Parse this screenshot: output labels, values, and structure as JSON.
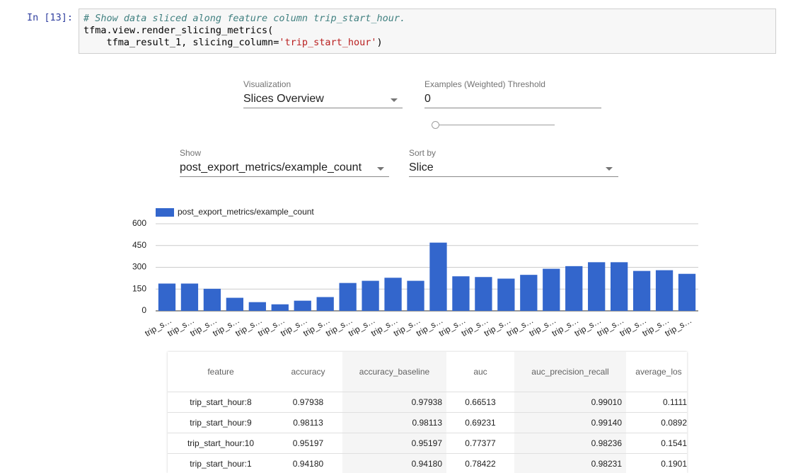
{
  "cell": {
    "prompt": "In [13]:",
    "code": [
      {
        "comment": "# Show data sliced along feature column trip_start_hour."
      },
      {
        "text": "tfma.view.render_slicing_metrics("
      },
      {
        "text": "    tfma_result_1, slicing_column=",
        "string": "'trip_start_hour'",
        "end": ")"
      }
    ]
  },
  "controls": {
    "visualization": {
      "label": "Visualization",
      "value": "Slices Overview"
    },
    "threshold": {
      "label": "Examples (Weighted) Threshold",
      "value": "0"
    },
    "show": {
      "label": "Show",
      "value": "post_export_metrics/example_count"
    },
    "sort_by": {
      "label": "Sort by",
      "value": "Slice"
    }
  },
  "chart_data": {
    "type": "bar",
    "categories": [
      "trip_s…",
      "trip_s…",
      "trip_s…",
      "trip_s…",
      "trip_s…",
      "trip_s…",
      "trip_s…",
      "trip_s…",
      "trip_s…",
      "trip_s…",
      "trip_s…",
      "trip_s…",
      "trip_s…",
      "trip_s…",
      "trip_s…",
      "trip_s…",
      "trip_s…",
      "trip_s…",
      "trip_s…",
      "trip_s…",
      "trip_s…",
      "trip_s…",
      "trip_s…",
      "trip_s…"
    ],
    "series": [
      {
        "name": "post_export_metrics/example_count",
        "color": "#3366cc",
        "values": [
          188,
          188,
          152,
          90,
          60,
          45,
          70,
          95,
          192,
          207,
          228,
          207,
          470,
          238,
          233,
          222,
          248,
          290,
          308,
          335,
          335,
          275,
          280,
          255
        ]
      }
    ],
    "ylim": [
      0,
      600
    ],
    "yticks": [
      0,
      150,
      300,
      450,
      600
    ],
    "grid": true,
    "legend": "top-left"
  },
  "table": {
    "headers": [
      "feature",
      "accuracy",
      "accuracy_baseline",
      "auc",
      "auc_precision_recall",
      "average_los"
    ],
    "rows": [
      [
        "trip_start_hour:8",
        "0.97938",
        "0.97938",
        "0.66513",
        "0.99010",
        "0.1111"
      ],
      [
        "trip_start_hour:9",
        "0.98113",
        "0.98113",
        "0.69231",
        "0.99140",
        "0.0892"
      ],
      [
        "trip_start_hour:10",
        "0.95197",
        "0.95197",
        "0.77377",
        "0.98236",
        "0.1541"
      ],
      [
        "trip_start_hour:1",
        "0.94180",
        "0.94180",
        "0.78422",
        "0.98231",
        "0.1901"
      ]
    ]
  }
}
